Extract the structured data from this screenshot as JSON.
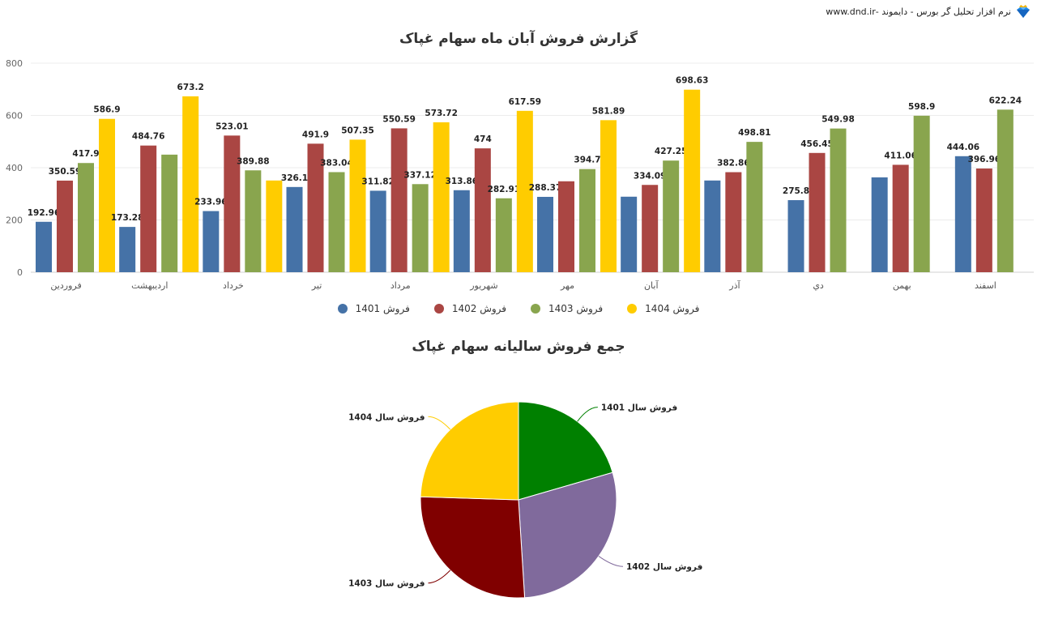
{
  "header": {
    "brand_text": "نرم افزار تحلیل گر بورس - دایموند -www.dnd.ir",
    "brand_icon": "diamond-crown-icon"
  },
  "chart_data": [
    {
      "type": "bar",
      "title": "گزارش فروش آبان ماه سهام غپاک",
      "xlabel": "",
      "ylabel": "",
      "ylim": [
        0,
        800
      ],
      "yticks": [
        0,
        200,
        400,
        600,
        800
      ],
      "grid": true,
      "legend_position": "bottom",
      "categories": [
        "فروردین",
        "اردیبهشت",
        "خرداد",
        "تیر",
        "مرداد",
        "شهریور",
        "مهر",
        "آبان",
        "آذر",
        "دي",
        "بهمن",
        "اسفند"
      ],
      "series": [
        {
          "name": "فروش 1401",
          "color": "#4572a7",
          "values": [
            192.96,
            173.28,
            233.96,
            326.1,
            311.82,
            313.86,
            288.37,
            289,
            351,
            275.8,
            363,
            444.06
          ],
          "labels": [
            "192.96",
            "173.28",
            "233.96",
            "326.1",
            "311.82",
            "313.86",
            "288.37",
            "",
            "",
            "275.8",
            "",
            "444.06"
          ]
        },
        {
          "name": "فروش 1402",
          "color": "#aa4643",
          "values": [
            350.59,
            484.76,
            523.01,
            491.9,
            550.59,
            474,
            348,
            334.09,
            382.86,
            456.45,
            411.06,
            396.96
          ],
          "labels": [
            "350.59",
            "484.76",
            "523.01",
            "491.9",
            "550.59",
            "474",
            "",
            "334.09",
            "382.86",
            "456.45",
            "411.06",
            "396.96"
          ]
        },
        {
          "name": "فروش 1403",
          "color": "#89a54e",
          "values": [
            417.9,
            450,
            389.88,
            383.04,
            337.12,
            282.91,
            394.7,
            427.25,
            498.81,
            549.98,
            598.9,
            622.24
          ],
          "labels": [
            "417.9",
            "",
            "389.88",
            "383.04",
            "337.12",
            "282.91",
            "394.7",
            "427.25",
            "498.81",
            "549.98",
            "598.9",
            "622.24"
          ]
        },
        {
          "name": "فروش 1404",
          "color": "#ffcc00",
          "values": [
            586.9,
            673.2,
            351,
            507.35,
            573.72,
            617.59,
            581.89,
            698.63,
            null,
            null,
            null,
            null
          ],
          "labels": [
            "586.9",
            "673.2",
            "",
            "507.35",
            "573.72",
            "617.59",
            "581.89",
            "698.63",
            "",
            "",
            "",
            ""
          ]
        }
      ]
    },
    {
      "type": "pie",
      "title": "جمع فروش سالیانه سهام غپاک",
      "legend_position": "none",
      "slices": [
        {
          "label": "فروش سال 1401",
          "value": 20.5,
          "color": "#008000"
        },
        {
          "label": "فروش سال 1402",
          "value": 28.5,
          "color": "#806a9c"
        },
        {
          "label": "فروش سال 1403",
          "value": 26.5,
          "color": "#800000"
        },
        {
          "label": "فروش سال 1404",
          "value": 24.5,
          "color": "#ffcc00"
        }
      ]
    }
  ],
  "legend": [
    {
      "label": "فروش 1401",
      "color": "#4572a7"
    },
    {
      "label": "فروش 1402",
      "color": "#aa4643"
    },
    {
      "label": "فروش 1403",
      "color": "#89a54e"
    },
    {
      "label": "فروش 1404",
      "color": "#ffcc00"
    }
  ]
}
